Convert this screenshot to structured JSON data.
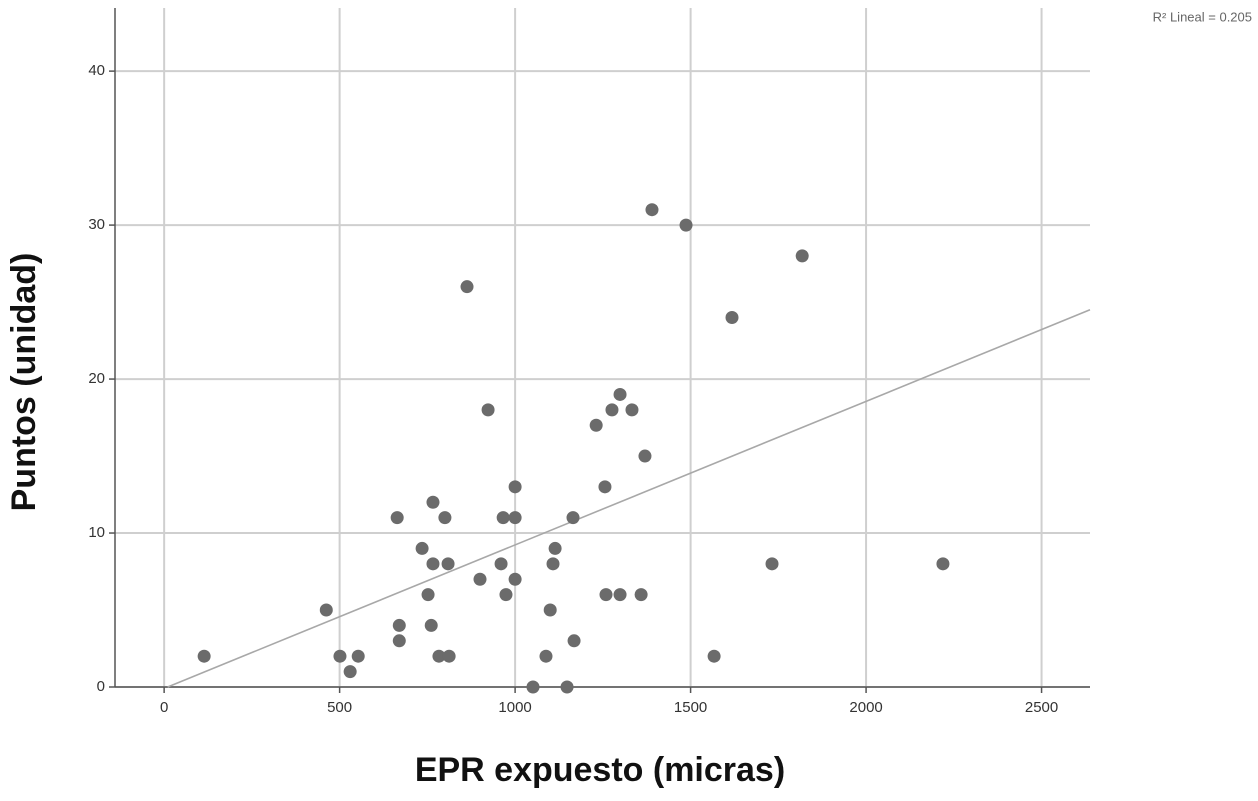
{
  "chart_data": {
    "type": "scatter",
    "x_label": "EPR expuesto (micras)",
    "y_label": "Puntos (unidad)",
    "annotation": "R² Lineal = 0.205",
    "x": [
      114,
      462,
      501,
      530,
      553,
      664,
      670,
      670,
      735,
      752,
      761,
      766,
      766,
      783,
      800,
      809,
      812,
      863,
      900,
      923,
      960,
      966,
      974,
      1000,
      1000,
      1000,
      1051,
      1088,
      1100,
      1108,
      1114,
      1148,
      1165,
      1168,
      1231,
      1256,
      1259,
      1276,
      1299,
      1299,
      1333,
      1359,
      1370,
      1390,
      1487,
      1567,
      1618,
      1732,
      1818,
      2219
    ],
    "values": [
      2,
      5,
      2,
      1,
      2,
      11,
      4,
      3,
      9,
      6,
      4,
      8,
      12,
      2,
      11,
      8,
      2,
      26,
      7,
      18,
      8,
      11,
      6,
      13,
      11,
      7,
      0,
      2,
      5,
      8,
      9,
      0,
      11,
      3,
      17,
      13,
      6,
      18,
      19,
      6,
      18,
      6,
      15,
      31,
      30,
      2,
      24,
      8,
      28,
      8
    ],
    "color": "#6b6b6b",
    "fit_line": {
      "x": [
        10,
        2638
      ],
      "y": [
        0,
        24.5
      ],
      "color": "#a8a8a8"
    },
    "xlim": [
      -140,
      2638
    ],
    "ylim": [
      0,
      44.1
    ],
    "xticks": [
      0,
      500,
      1000,
      1500,
      2000,
      2500
    ],
    "yticks": [
      0,
      10,
      20,
      30,
      40
    ],
    "grid": true
  }
}
